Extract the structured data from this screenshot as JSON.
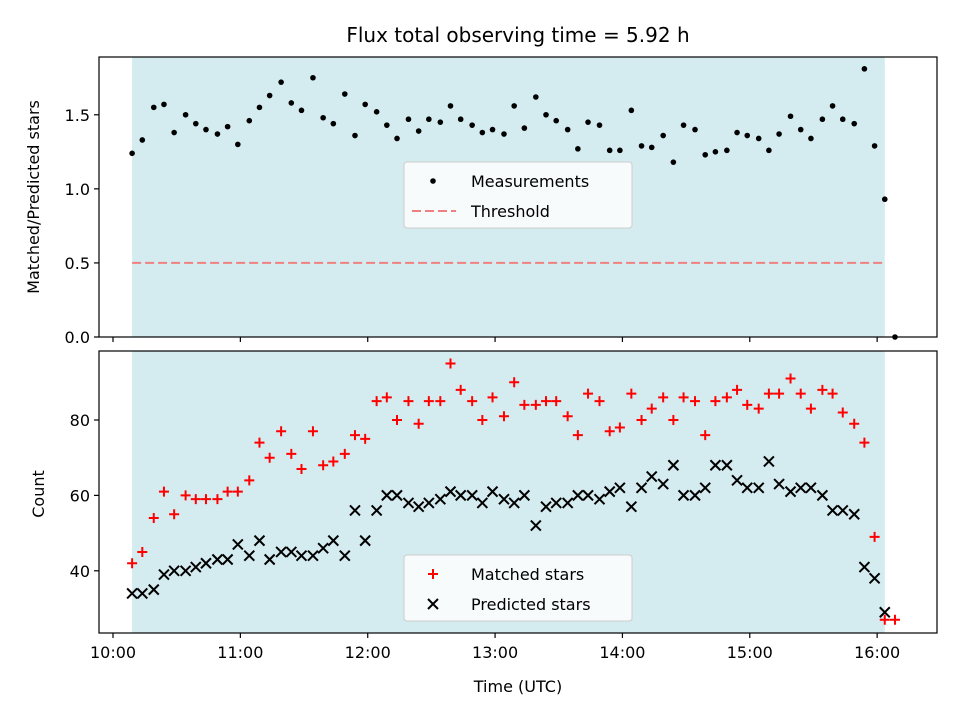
{
  "chart_data": [
    {
      "type": "scatter",
      "title": "Flux total observing time = 5.92 h",
      "xlabel": "",
      "ylabel": "Matched/Predicted stars",
      "xlim": [
        9.89,
        16.47
      ],
      "ylim": [
        0.0,
        1.89
      ],
      "xticks": [
        10,
        11,
        12,
        13,
        14,
        15,
        16
      ],
      "yticks": [
        0.0,
        0.5,
        1.0,
        1.5
      ],
      "ytick_labels": [
        "0.0",
        "0.5",
        "1.0",
        "1.5"
      ],
      "shaded_span": [
        10.15,
        16.06
      ],
      "threshold": 0.5,
      "threshold_color": "#f08080",
      "shade_color": "#d4ebf0",
      "legend_position": "center",
      "legend": [
        "Measurements",
        "Threshold"
      ],
      "series": [
        {
          "name": "Measurements",
          "marker": "dot",
          "color": "#000000",
          "x": [
            10.15,
            10.23,
            10.32,
            10.4,
            10.48,
            10.57,
            10.65,
            10.73,
            10.82,
            10.9,
            10.98,
            11.07,
            11.15,
            11.23,
            11.32,
            11.4,
            11.48,
            11.57,
            11.65,
            11.73,
            11.82,
            11.9,
            11.98,
            12.07,
            12.15,
            12.23,
            12.32,
            12.4,
            12.48,
            12.57,
            12.65,
            12.73,
            12.82,
            12.9,
            12.98,
            13.07,
            13.15,
            13.23,
            13.32,
            13.4,
            13.48,
            13.57,
            13.65,
            13.73,
            13.82,
            13.9,
            13.98,
            14.07,
            14.15,
            14.23,
            14.32,
            14.4,
            14.48,
            14.57,
            14.65,
            14.73,
            14.82,
            14.9,
            14.98,
            15.07,
            15.15,
            15.23,
            15.32,
            15.4,
            15.48,
            15.57,
            15.65,
            15.73,
            15.82,
            15.9,
            15.98,
            16.06,
            16.14
          ],
          "y": [
            1.24,
            1.33,
            1.55,
            1.57,
            1.38,
            1.5,
            1.44,
            1.4,
            1.37,
            1.42,
            1.3,
            1.46,
            1.55,
            1.63,
            1.72,
            1.58,
            1.53,
            1.75,
            1.48,
            1.44,
            1.64,
            1.36,
            1.57,
            1.52,
            1.43,
            1.34,
            1.47,
            1.39,
            1.47,
            1.45,
            1.56,
            1.47,
            1.43,
            1.38,
            1.4,
            1.37,
            1.56,
            1.41,
            1.62,
            1.5,
            1.46,
            1.4,
            1.27,
            1.45,
            1.43,
            1.26,
            1.26,
            1.53,
            1.29,
            1.28,
            1.36,
            1.18,
            1.43,
            1.4,
            1.23,
            1.25,
            1.26,
            1.38,
            1.36,
            1.34,
            1.26,
            1.37,
            1.49,
            1.4,
            1.34,
            1.47,
            1.56,
            1.47,
            1.44,
            1.81,
            1.29,
            0.93,
            0.0
          ]
        }
      ]
    },
    {
      "type": "scatter",
      "title": "",
      "xlabel": "Time (UTC)",
      "ylabel": "Count",
      "xlim": [
        9.89,
        16.47
      ],
      "ylim": [
        23.5,
        98.3
      ],
      "xticks": [
        10,
        11,
        12,
        13,
        14,
        15,
        16
      ],
      "xtick_labels": [
        "10:00",
        "11:00",
        "12:00",
        "13:00",
        "14:00",
        "15:00",
        "16:00"
      ],
      "yticks": [
        40,
        60,
        80
      ],
      "ytick_labels": [
        "40",
        "60",
        "80"
      ],
      "shaded_span": [
        10.15,
        16.06
      ],
      "shade_color": "#d4ebf0",
      "legend_position": "lower center",
      "legend": [
        "Matched stars",
        "Predicted stars"
      ],
      "series": [
        {
          "name": "Matched stars",
          "marker": "plus",
          "color": "#ff0000",
          "x": [
            10.15,
            10.23,
            10.32,
            10.4,
            10.48,
            10.57,
            10.65,
            10.73,
            10.82,
            10.9,
            10.98,
            11.07,
            11.15,
            11.23,
            11.32,
            11.4,
            11.48,
            11.57,
            11.65,
            11.73,
            11.82,
            11.9,
            11.98,
            12.07,
            12.15,
            12.23,
            12.32,
            12.4,
            12.48,
            12.57,
            12.65,
            12.73,
            12.82,
            12.9,
            12.98,
            13.07,
            13.15,
            13.23,
            13.32,
            13.4,
            13.48,
            13.57,
            13.65,
            13.73,
            13.82,
            13.9,
            13.98,
            14.07,
            14.15,
            14.23,
            14.32,
            14.4,
            14.48,
            14.57,
            14.65,
            14.73,
            14.82,
            14.9,
            14.98,
            15.07,
            15.15,
            15.23,
            15.32,
            15.4,
            15.48,
            15.57,
            15.65,
            15.73,
            15.82,
            15.9,
            15.98,
            16.06,
            16.14
          ],
          "y": [
            42,
            45,
            54,
            61,
            55,
            60,
            59,
            59,
            59,
            61,
            61,
            64,
            74,
            70,
            77,
            71,
            67,
            77,
            68,
            69,
            71,
            76,
            75,
            85,
            86,
            80,
            85,
            79,
            85,
            85,
            95,
            88,
            85,
            80,
            86,
            81,
            90,
            84,
            84,
            85,
            85,
            81,
            76,
            87,
            85,
            77,
            78,
            87,
            80,
            83,
            86,
            80,
            86,
            85,
            76,
            85,
            86,
            88,
            84,
            83,
            87,
            87,
            91,
            87,
            83,
            88,
            87,
            82,
            79,
            74,
            49,
            27,
            27
          ]
        },
        {
          "name": "Predicted stars",
          "marker": "x",
          "color": "#000000",
          "x": [
            10.15,
            10.23,
            10.32,
            10.4,
            10.48,
            10.57,
            10.65,
            10.73,
            10.82,
            10.9,
            10.98,
            11.07,
            11.15,
            11.23,
            11.32,
            11.4,
            11.48,
            11.57,
            11.65,
            11.73,
            11.82,
            11.9,
            11.98,
            12.07,
            12.15,
            12.23,
            12.32,
            12.4,
            12.48,
            12.57,
            12.65,
            12.73,
            12.82,
            12.9,
            12.98,
            13.07,
            13.15,
            13.23,
            13.32,
            13.4,
            13.48,
            13.57,
            13.65,
            13.73,
            13.82,
            13.9,
            13.98,
            14.07,
            14.15,
            14.23,
            14.32,
            14.4,
            14.48,
            14.57,
            14.65,
            14.73,
            14.82,
            14.9,
            14.98,
            15.07,
            15.15,
            15.23,
            15.32,
            15.4,
            15.48,
            15.57,
            15.65,
            15.73,
            15.82,
            15.9,
            15.98,
            16.06
          ],
          "y": [
            34,
            34,
            35,
            39,
            40,
            40,
            41,
            42,
            43,
            43,
            47,
            44,
            48,
            43,
            45,
            45,
            44,
            44,
            46,
            48,
            44,
            56,
            48,
            56,
            60,
            60,
            58,
            57,
            58,
            59,
            61,
            60,
            60,
            58,
            61,
            59,
            58,
            60,
            52,
            57,
            58,
            58,
            60,
            60,
            59,
            61,
            62,
            57,
            62,
            65,
            63,
            68,
            60,
            60,
            62,
            68,
            68,
            64,
            62,
            62,
            69,
            63,
            61,
            62,
            62,
            60,
            56,
            56,
            55,
            41,
            38,
            29
          ]
        }
      ]
    }
  ]
}
